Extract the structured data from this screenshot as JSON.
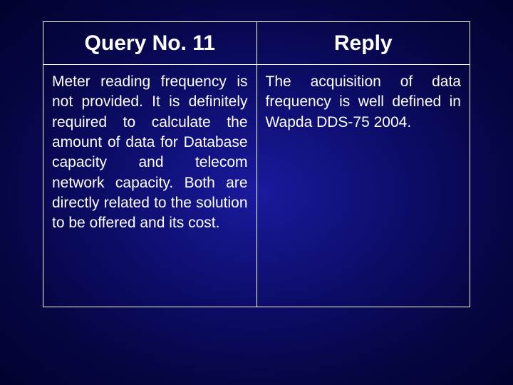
{
  "background": {
    "gradient_center": "#1a1a9e",
    "gradient_mid": "#0d0d6b",
    "gradient_outer": "#050540",
    "gradient_edge": "#020230"
  },
  "table": {
    "border_color": "#ffffff",
    "text_color": "#ffffff",
    "header_fontsize": 30,
    "body_fontsize": 21,
    "headers": {
      "left": "Query No. 11",
      "right": "Reply"
    },
    "cells": {
      "left": "Meter reading frequency is not provided. It is definitely required to calculate the amount of data for Database capacity and telecom network capacity. Both are directly related to the solution to be offered and its cost.",
      "right": "The acquisition of data frequency is well defined in Wapda DDS-75 2004."
    }
  }
}
